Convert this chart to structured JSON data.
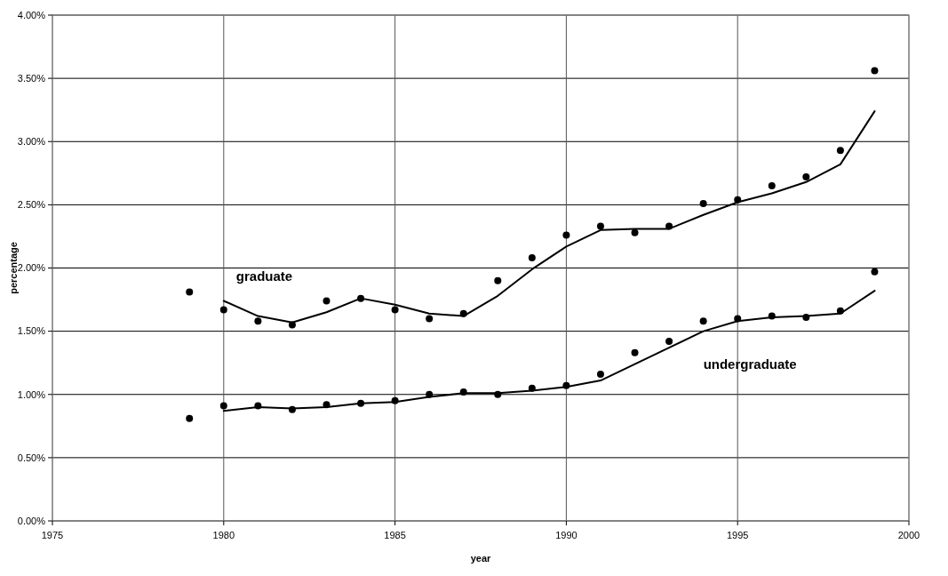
{
  "chart_data": {
    "type": "line",
    "xlabel": "year",
    "ylabel": "percentage",
    "xlim": [
      1975,
      2000
    ],
    "xticks": [
      1975,
      1980,
      1985,
      1990,
      1995,
      2000
    ],
    "ylim": [
      0,
      4
    ],
    "yticks": [
      {
        "value": 0,
        "label": "0.00%"
      },
      {
        "value": 0.5,
        "label": "0.50%"
      },
      {
        "value": 1,
        "label": "1.00%"
      },
      {
        "value": 1.5,
        "label": "1.50%"
      },
      {
        "value": 2,
        "label": "2.00%"
      },
      {
        "value": 2.5,
        "label": "2.50%"
      },
      {
        "value": 3,
        "label": "3.00%"
      },
      {
        "value": 3.5,
        "label": "3.50%"
      },
      {
        "value": 4,
        "label": "4.00%"
      }
    ],
    "grid": true,
    "legend": false,
    "series": [
      {
        "type": "scatter",
        "marker": "circle",
        "color": "#000000",
        "x": [
          1979,
          1980,
          1981,
          1982,
          1983,
          1984,
          1985,
          1986,
          1987,
          1988,
          1989,
          1990,
          1991,
          1992,
          1993,
          1994,
          1995,
          1996,
          1997,
          1998,
          1999
        ],
        "values": [
          1.81,
          1.67,
          1.58,
          1.55,
          1.74,
          1.76,
          1.67,
          1.6,
          1.64,
          1.9,
          2.08,
          2.26,
          2.33,
          2.28,
          2.33,
          2.51,
          2.54,
          2.65,
          2.72,
          2.93,
          3.56
        ]
      },
      {
        "name": "graduate",
        "color": "#000000",
        "x": [
          1980,
          1981,
          1982,
          1983,
          1984,
          1985,
          1986,
          1987,
          1988,
          1989,
          1990,
          1991,
          1992,
          1993,
          1994,
          1995,
          1996,
          1997,
          1998,
          1999
        ],
        "values": [
          1.74,
          1.62,
          1.57,
          1.65,
          1.76,
          1.71,
          1.64,
          1.62,
          1.78,
          1.99,
          2.17,
          2.3,
          2.31,
          2.31,
          2.42,
          2.52,
          2.59,
          2.68,
          2.82,
          3.24
        ]
      },
      {
        "type": "scatter",
        "marker": "circle",
        "color": "#000000",
        "x": [
          1979,
          1980,
          1981,
          1982,
          1983,
          1984,
          1985,
          1986,
          1987,
          1988,
          1989,
          1990,
          1991,
          1992,
          1993,
          1994,
          1995,
          1996,
          1997,
          1998,
          1999
        ],
        "values": [
          0.81,
          0.91,
          0.91,
          0.88,
          0.92,
          0.93,
          0.95,
          1.0,
          1.02,
          1.0,
          1.05,
          1.07,
          1.16,
          1.33,
          1.42,
          1.58,
          1.6,
          1.62,
          1.61,
          1.66,
          1.97
        ]
      },
      {
        "name": "undergraduate",
        "color": "#000000",
        "x": [
          1980,
          1981,
          1982,
          1983,
          1984,
          1985,
          1986,
          1987,
          1988,
          1989,
          1990,
          1991,
          1992,
          1993,
          1994,
          1995,
          1996,
          1997,
          1998,
          1999
        ],
        "values": [
          0.87,
          0.9,
          0.89,
          0.9,
          0.93,
          0.94,
          0.98,
          1.01,
          1.01,
          1.03,
          1.06,
          1.11,
          1.24,
          1.37,
          1.5,
          1.58,
          1.61,
          1.62,
          1.64,
          1.82
        ]
      }
    ]
  }
}
